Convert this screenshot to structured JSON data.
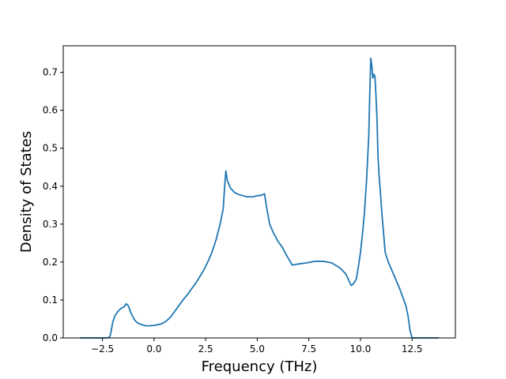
{
  "chart_data": {
    "type": "line",
    "xlabel": "Frequency (THz)",
    "ylabel": "Density of States",
    "xlim": [
      -4.4,
      14.6
    ],
    "ylim": [
      0.0,
      0.77
    ],
    "xticks": [
      -2.5,
      0.0,
      2.5,
      5.0,
      7.5,
      10.0,
      12.5
    ],
    "xtick_labels": [
      "−2.5",
      "0.0",
      "2.5",
      "5.0",
      "7.5",
      "10.0",
      "12.5"
    ],
    "yticks": [
      0.0,
      0.1,
      0.2,
      0.3,
      0.4,
      0.5,
      0.6,
      0.7
    ],
    "ytick_labels": [
      "0.0",
      "0.1",
      "0.2",
      "0.3",
      "0.4",
      "0.5",
      "0.6",
      "0.7"
    ],
    "grid": false,
    "line_color": "#1f77b4",
    "series": [
      {
        "x": [
          -3.6,
          -2.3,
          -2.15,
          -2.1,
          -2.0,
          -1.9,
          -1.75,
          -1.6,
          -1.45,
          -1.35,
          -1.25,
          -1.15,
          -1.05,
          -0.95,
          -0.85,
          -0.75,
          -0.6,
          -0.4,
          -0.2,
          0.0,
          0.2,
          0.4,
          0.6,
          0.8,
          1.0,
          1.2,
          1.4,
          1.6,
          1.8,
          2.0,
          2.2,
          2.4,
          2.6,
          2.8,
          3.0,
          3.2,
          3.35,
          3.42,
          3.48,
          3.55,
          3.7,
          3.9,
          4.1,
          4.3,
          4.5,
          4.8,
          5.0,
          5.2,
          5.35,
          5.45,
          5.6,
          5.8,
          6.0,
          6.2,
          6.4,
          6.5,
          6.7,
          7.0,
          7.4,
          7.8,
          8.2,
          8.6,
          9.0,
          9.3,
          9.55,
          9.65,
          9.8,
          9.9,
          10.0,
          10.1,
          10.2,
          10.3,
          10.4,
          10.45,
          10.5,
          10.55,
          10.6,
          10.65,
          10.7,
          10.75,
          10.8,
          10.85,
          10.9,
          10.95,
          11.05,
          11.2,
          11.35,
          11.6,
          11.9,
          12.2,
          12.3,
          12.4,
          12.5,
          13.0,
          13.8
        ],
        "y": [
          0.0,
          0.0,
          0.002,
          0.012,
          0.042,
          0.058,
          0.07,
          0.078,
          0.082,
          0.09,
          0.085,
          0.07,
          0.058,
          0.048,
          0.042,
          0.038,
          0.035,
          0.032,
          0.032,
          0.033,
          0.035,
          0.038,
          0.045,
          0.055,
          0.07,
          0.085,
          0.1,
          0.113,
          0.128,
          0.143,
          0.16,
          0.178,
          0.2,
          0.225,
          0.258,
          0.3,
          0.34,
          0.4,
          0.44,
          0.415,
          0.395,
          0.383,
          0.378,
          0.375,
          0.372,
          0.372,
          0.375,
          0.376,
          0.38,
          0.345,
          0.3,
          0.275,
          0.255,
          0.24,
          0.22,
          0.21,
          0.192,
          0.195,
          0.198,
          0.202,
          0.202,
          0.198,
          0.185,
          0.168,
          0.138,
          0.142,
          0.155,
          0.188,
          0.225,
          0.275,
          0.335,
          0.42,
          0.53,
          0.64,
          0.737,
          0.718,
          0.685,
          0.695,
          0.69,
          0.64,
          0.58,
          0.48,
          0.43,
          0.395,
          0.32,
          0.225,
          0.2,
          0.168,
          0.13,
          0.085,
          0.06,
          0.02,
          0.0,
          0.0,
          0.0
        ]
      }
    ]
  }
}
